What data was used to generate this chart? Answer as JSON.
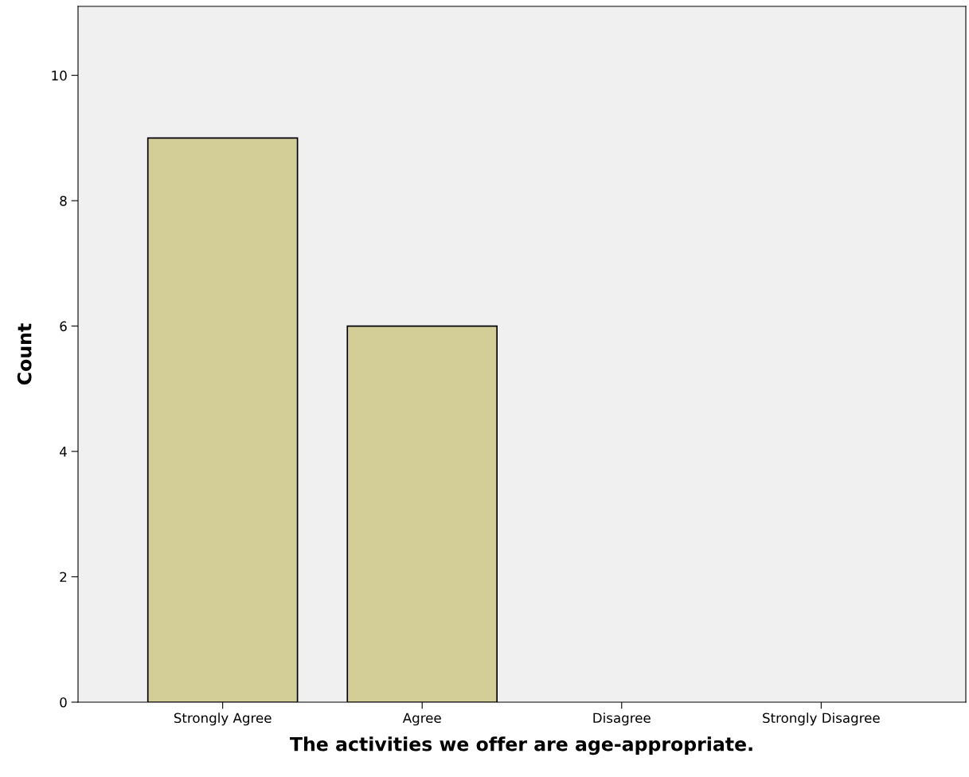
{
  "chart_data": {
    "type": "bar",
    "xlabel": "The activities we offer are age-appropriate.",
    "ylabel": "Count",
    "categories": [
      "Strongly Agree",
      "Agree",
      "Disagree",
      "Strongly Disagree"
    ],
    "values": [
      9,
      6,
      0,
      0
    ],
    "color": "#d3ce98",
    "ylim": [
      0,
      11.1
    ],
    "yticks": [
      0,
      2,
      4,
      6,
      8,
      10
    ],
    "grid": false,
    "legend": false
  }
}
